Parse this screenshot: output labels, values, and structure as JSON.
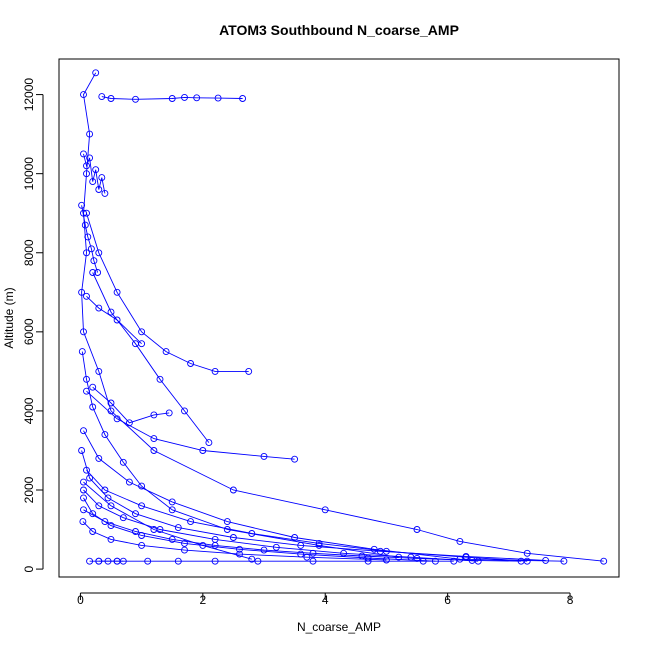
{
  "chart_data": {
    "type": "line",
    "title": "ATOM3 Southbound N_coarse_AMP",
    "xlabel": "N_coarse_AMP",
    "ylabel": "Altitude (m)",
    "xlim": [
      -0.35,
      8.8
    ],
    "ylim": [
      -200,
      12900
    ],
    "xticks": [
      0,
      2,
      4,
      6,
      8
    ],
    "yticks": [
      0,
      2000,
      4000,
      6000,
      8000,
      10000,
      12000
    ],
    "grid": false,
    "legend": "none",
    "marker": "open-circle",
    "color": "#0000ff",
    "series": [
      {
        "x": [
          0.25,
          0.05,
          0.15,
          0.1,
          0.05,
          0.1,
          0.02,
          0.05,
          0.3,
          0.5,
          1.2,
          2.5,
          4.0,
          5.5,
          6.2,
          7.3,
          8.55
        ],
        "y": [
          12550,
          12000,
          11000,
          10000,
          9000,
          8000,
          7000,
          6000,
          5000,
          4000,
          3000,
          2000,
          1500,
          1000,
          700,
          400,
          200
        ]
      },
      {
        "x": [
          0.35,
          0.5,
          0.9,
          1.5,
          1.7,
          1.9,
          2.25,
          2.65
        ],
        "y": [
          11950,
          11900,
          11880,
          11900,
          11930,
          11920,
          11910,
          11900
        ]
      },
      {
        "x": [
          0.1,
          0.3,
          0.6,
          1.0,
          1.4,
          1.8,
          2.2,
          2.75
        ],
        "y": [
          9000,
          8000,
          7000,
          6000,
          5500,
          5200,
          5000,
          5000
        ]
      },
      {
        "x": [
          0.2,
          0.5,
          0.9,
          1.3,
          1.7,
          2.1
        ],
        "y": [
          7500,
          6500,
          5700,
          4800,
          4000,
          3200
        ]
      },
      {
        "x": [
          0.1,
          0.6,
          1.2,
          2.0,
          3.0,
          3.5
        ],
        "y": [
          4500,
          3800,
          3300,
          3000,
          2850,
          2780
        ]
      },
      {
        "x": [
          0.05,
          0.3,
          0.8,
          1.5,
          2.4,
          3.5,
          4.8,
          6.2,
          7.9
        ],
        "y": [
          3500,
          2800,
          2200,
          1700,
          1200,
          800,
          500,
          250,
          200
        ]
      },
      {
        "x": [
          0.1,
          0.4,
          1.0,
          1.8,
          2.8,
          3.9,
          5.0,
          6.3,
          7.3
        ],
        "y": [
          2500,
          2000,
          1600,
          1200,
          900,
          650,
          450,
          300,
          200
        ]
      },
      {
        "x": [
          0.05,
          0.3,
          0.7,
          1.3,
          2.2,
          3.2,
          4.3,
          5.4,
          6.5
        ],
        "y": [
          2000,
          1600,
          1300,
          1000,
          750,
          550,
          400,
          300,
          200
        ]
      },
      {
        "x": [
          0.05,
          0.2,
          0.5,
          1.0,
          1.7,
          2.6,
          3.6,
          4.7,
          5.8
        ],
        "y": [
          1800,
          1400,
          1100,
          850,
          650,
          500,
          380,
          280,
          200
        ]
      },
      {
        "x": [
          0.3,
          0.6,
          1.1,
          1.6,
          2.2,
          2.9,
          3.8,
          4.7,
          5.6,
          6.1
        ],
        "y": [
          200,
          200,
          200,
          200,
          200,
          200,
          200,
          200,
          200,
          200
        ]
      },
      {
        "x": [
          0.15,
          0.3,
          0.45,
          0.6,
          0.7
        ],
        "y": [
          200,
          200,
          200,
          200,
          200
        ]
      },
      {
        "x": [
          0.05,
          0.5,
          1.2,
          2.0,
          2.8
        ],
        "y": [
          2200,
          1600,
          1000,
          600,
          250
        ]
      },
      {
        "x": [
          0.05,
          0.4,
          0.9,
          1.5,
          2.2,
          3.0,
          3.8,
          4.6,
          5.5,
          6.4,
          7.2
        ],
        "y": [
          1500,
          1200,
          950,
          750,
          600,
          480,
          400,
          330,
          270,
          220,
          200
        ]
      },
      {
        "x": [
          0.1,
          0.3,
          0.6,
          1.0
        ],
        "y": [
          6900,
          6600,
          6300,
          5700
        ]
      },
      {
        "x": [
          0.2,
          0.5,
          0.8,
          1.2,
          1.45
        ],
        "y": [
          4600,
          4200,
          3700,
          3900,
          3950
        ]
      },
      {
        "x": [
          0.05,
          0.1,
          0.15,
          0.2,
          0.25,
          0.3,
          0.35,
          0.4
        ],
        "y": [
          10500,
          10200,
          10400,
          9800,
          10100,
          9600,
          9900,
          9500
        ]
      },
      {
        "x": [
          0.02,
          0.08,
          0.12,
          0.18,
          0.22,
          0.28
        ],
        "y": [
          9200,
          8700,
          8400,
          8100,
          7800,
          7500
        ]
      },
      {
        "x": [
          0.03,
          0.1,
          0.2,
          0.4,
          0.7,
          1.0,
          1.5,
          2.4,
          3.9,
          5.2
        ],
        "y": [
          5500,
          4800,
          4100,
          3400,
          2700,
          2100,
          1500,
          1000,
          600,
          300
        ]
      },
      {
        "x": [
          0.02,
          0.15,
          0.45,
          0.9,
          1.6,
          2.5,
          3.6,
          4.9,
          6.3,
          7.6
        ],
        "y": [
          3000,
          2300,
          1800,
          1400,
          1050,
          800,
          600,
          450,
          320,
          220
        ]
      },
      {
        "x": [
          0.04,
          0.2,
          0.5,
          1.0,
          1.7,
          2.6,
          3.7,
          5.0
        ],
        "y": [
          1200,
          950,
          750,
          600,
          480,
          380,
          300,
          230
        ]
      }
    ]
  }
}
